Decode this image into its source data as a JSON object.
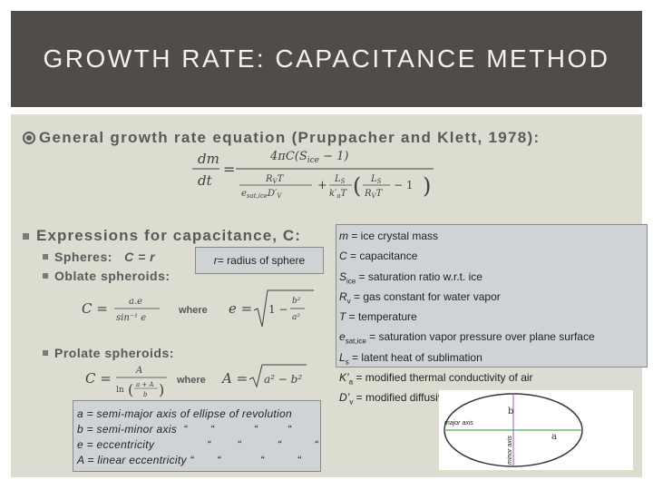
{
  "title": "GROWTH RATE: CAPACITANCE METHOD",
  "bullet_general": "General growth rate equation (Pruppacher and Klett, 1978):",
  "eq_main": {
    "lhs_num": "dm",
    "lhs_den": "dt",
    "rhs_num": "4πC(S",
    "rhs_num_sub": "ice",
    "rhs_num_end": " − 1)",
    "den_t1_num": "R",
    "den_t1_num_sub": "V",
    "den_t1_num_end": "T",
    "den_t1_den": "e",
    "den_t1_den_sub": "sat,ice",
    "den_t1_den_end": "D′",
    "den_t1_den_end_sub": "V",
    "plus": "+",
    "den_t2_num": "L",
    "den_t2_num_sub": "S",
    "den_t2_den": "k′",
    "den_t2_den_sub": "a",
    "den_t2_den_end": "T",
    "paren_num": "L",
    "paren_num_sub": "S",
    "paren_den": "R",
    "paren_den_sub": "V",
    "paren_den_end": "T",
    "paren_minus": "− 1"
  },
  "bullet_capacitance": "Expressions for capacitance, C:",
  "spheres_label": "Spheres:",
  "spheres_eq": "C = r",
  "oblate_label": "Oblate spheroids:",
  "prolate_label": "Prolate spheroids:",
  "where": "where",
  "sphere_note_var": "r",
  "sphere_note_text": " = radius of sphere",
  "eq_oblate": {
    "C": "C =",
    "num": "a.e",
    "den": "sin⁻¹ e",
    "e": "e =",
    "one": "1 −",
    "b2": "b²",
    "a2": "a²"
  },
  "eq_prolate": {
    "C": "C =",
    "num": "A",
    "den_ln": "ln",
    "den_num": "a + A",
    "den_den": "b",
    "A": "A =",
    "rad": "a² − b²"
  },
  "definitions": [
    {
      "sym": "m",
      "sub": "",
      "text": " = ice crystal mass"
    },
    {
      "sym": "C",
      "sub": "",
      "text": " = capacitance"
    },
    {
      "sym": "S",
      "sub": "ice",
      "text": " = saturation ratio w.r.t. ice"
    },
    {
      "sym": "R",
      "sub": "v",
      "text": " = gas constant for water vapor"
    },
    {
      "sym": "T",
      "sub": "",
      "text": " = temperature"
    },
    {
      "sym": "e",
      "sub": "sat,ice",
      "text": " = saturation vapor pressure over plane surface"
    },
    {
      "sym": "L",
      "sub": "s",
      "text": " = latent heat of sublimation"
    },
    {
      "sym": "K’",
      "sub": "a",
      "text": " = modified thermal conductivity of air"
    },
    {
      "sym": "D’",
      "sub": "v",
      "text": " = modified diffusivity of water vapor in air"
    }
  ],
  "axes_defs": [
    "a = semi-major axis of ellipse of revolution",
    "b = semi-minor axis  “       “            “         “",
    "e = eccentricity                “        “           “          “",
    "A = linear eccentricity “       “            “          “"
  ],
  "ellipse_labels": {
    "major": "major axis",
    "minor": "minor axis",
    "b": "b",
    "a": "a"
  }
}
